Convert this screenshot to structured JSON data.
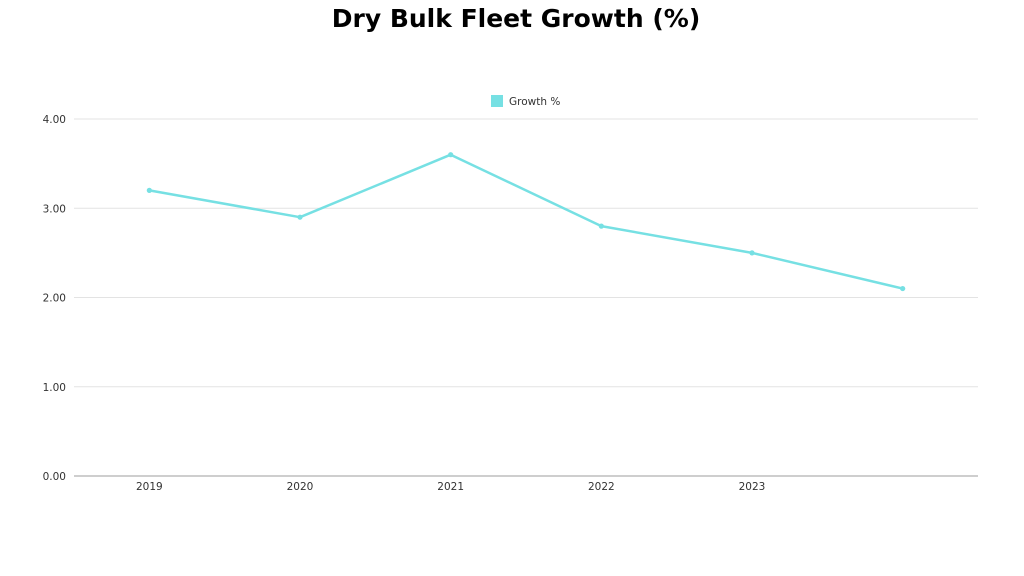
{
  "chart_data": {
    "type": "line",
    "title": "Dry Bulk Fleet Growth (%)",
    "xlabel": "",
    "ylabel": "",
    "categories": [
      "2019",
      "2020",
      "2021",
      "2022",
      "2023",
      ""
    ],
    "series": [
      {
        "name": "Growth %",
        "color": "#76e0e3",
        "values": [
          3.2,
          2.9,
          3.6,
          2.8,
          2.5,
          2.1
        ]
      }
    ],
    "ylim": [
      0,
      4
    ],
    "yticks": [
      "0.00",
      "1.00",
      "2.00",
      "3.00",
      "4.00"
    ],
    "grid": true,
    "legend": "top-center"
  }
}
